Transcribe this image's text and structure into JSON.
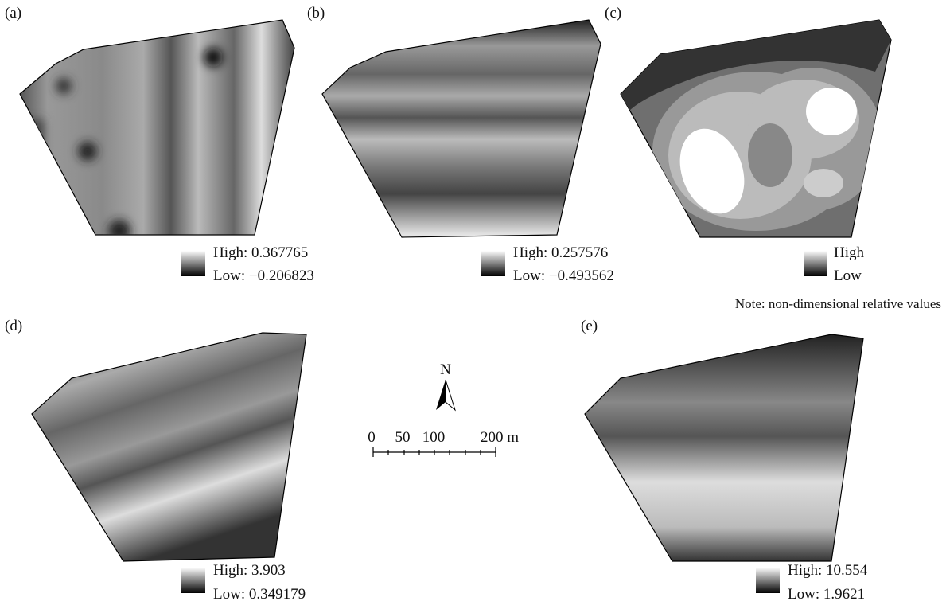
{
  "panels": [
    {
      "label": "(a)",
      "high": "High: 0.367765",
      "low": "Low: −0.206823"
    },
    {
      "label": "(b)",
      "high": "High: 0.257576",
      "low": "Low: −0.493562"
    },
    {
      "label": "(c)",
      "high": "High",
      "low": "Low"
    },
    {
      "label": "(d)",
      "high": "High: 3.903",
      "low": "Low: 0.349179"
    },
    {
      "label": "(e)",
      "high": "High: 10.554",
      "low": "Low: 1.9621"
    }
  ],
  "note": "Note: non-dimensional relative values",
  "north": "N",
  "scale_bar": [
    "0",
    "50",
    "100",
    "200 m"
  ]
}
